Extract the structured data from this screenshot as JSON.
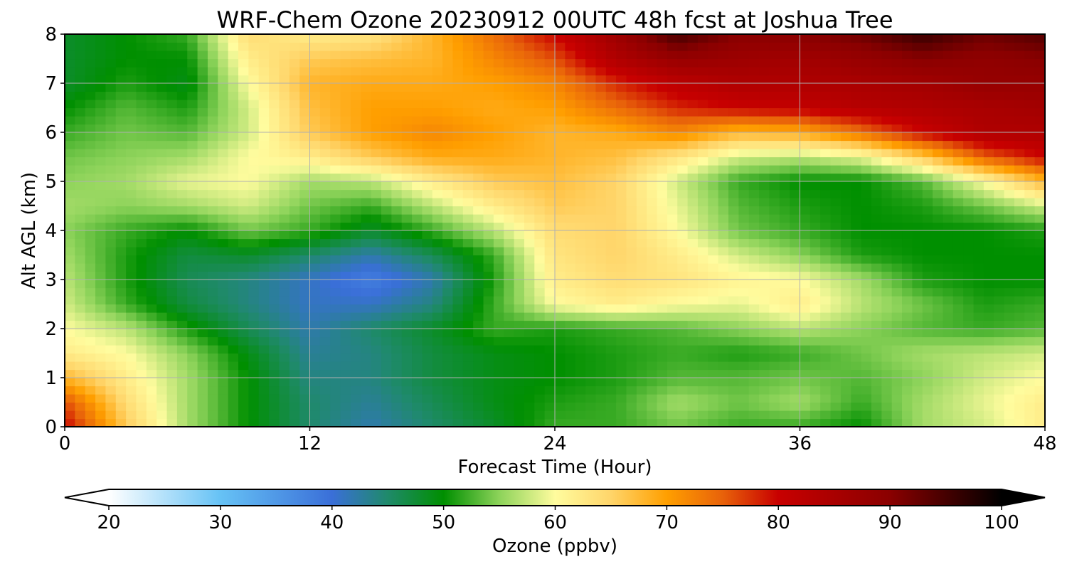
{
  "chart_data": {
    "type": "heatmap",
    "title": "WRF-Chem Ozone  20230912 00UTC 48h fcst at Joshua Tree",
    "xlabel": "Forecast Time (Hour)",
    "ylabel": "Alt AGL (km)",
    "xlim": [
      0,
      48
    ],
    "ylim": [
      0,
      8
    ],
    "x_ticks": [
      0,
      12,
      24,
      36,
      48
    ],
    "y_ticks": [
      0,
      1,
      2,
      3,
      4,
      5,
      6,
      7,
      8
    ],
    "grid": true,
    "x": [
      0,
      3,
      6,
      9,
      12,
      15,
      18,
      21,
      24,
      27,
      30,
      33,
      36,
      39,
      42,
      45,
      48
    ],
    "y": [
      0,
      0.5,
      1,
      1.5,
      2,
      2.5,
      3,
      3.5,
      4,
      4.5,
      5,
      5.5,
      6,
      6.5,
      7,
      7.5,
      8
    ],
    "z": [
      [
        80,
        66,
        56,
        50,
        45,
        42,
        45,
        48,
        52,
        52,
        54,
        52,
        52,
        50,
        56,
        58,
        62
      ],
      [
        76,
        64,
        56,
        50,
        45,
        43,
        46,
        49,
        51,
        52,
        56,
        54,
        56,
        52,
        56,
        59,
        62
      ],
      [
        68,
        62,
        56,
        50,
        44,
        44,
        47,
        49,
        50,
        51,
        53,
        53,
        54,
        53,
        55,
        58,
        60
      ],
      [
        62,
        60,
        55,
        49,
        43,
        44,
        47,
        49,
        50,
        51,
        52,
        51,
        52,
        54,
        56,
        57,
        58
      ],
      [
        60,
        57,
        51,
        46,
        42,
        45,
        48,
        52,
        51,
        52,
        53,
        55,
        57,
        55,
        53,
        52,
        53
      ],
      [
        58,
        52,
        47,
        44,
        41,
        41,
        44,
        52,
        60,
        62,
        60,
        59,
        62,
        57,
        54,
        51,
        52
      ],
      [
        57,
        51,
        46,
        44,
        41,
        38,
        42,
        51,
        62,
        64,
        63,
        61,
        60,
        56,
        51,
        50,
        50
      ],
      [
        56,
        51,
        47,
        48,
        45,
        42,
        46,
        52,
        63,
        65,
        62,
        58,
        55,
        51,
        50,
        50,
        50
      ],
      [
        55,
        52,
        50,
        54,
        52,
        48,
        52,
        57,
        64,
        65,
        60,
        54,
        52,
        50,
        50,
        50,
        51
      ],
      [
        56,
        55,
        56,
        58,
        54,
        52,
        57,
        62,
        66,
        65,
        59,
        53,
        51,
        50,
        51,
        54,
        58
      ],
      [
        55,
        56,
        59,
        60,
        56,
        57,
        62,
        66,
        67,
        65,
        58,
        52,
        50,
        50,
        53,
        60,
        68
      ],
      [
        54,
        55,
        56,
        60,
        62,
        66,
        69,
        69,
        68,
        67,
        63,
        58,
        57,
        59,
        66,
        75,
        80
      ],
      [
        52,
        54,
        53,
        58,
        66,
        70,
        72,
        70,
        68,
        69,
        72,
        68,
        69,
        74,
        80,
        84,
        84
      ],
      [
        50,
        53,
        51,
        58,
        67,
        70,
        70,
        69,
        70,
        74,
        78,
        80,
        81,
        83,
        84,
        85,
        86
      ],
      [
        48,
        51,
        49,
        60,
        68,
        69,
        69,
        70,
        72,
        78,
        82,
        84,
        84,
        85,
        86,
        88,
        88
      ],
      [
        48,
        50,
        50,
        62,
        66,
        67,
        68,
        72,
        76,
        84,
        88,
        87,
        86,
        88,
        90,
        89,
        90
      ],
      [
        48,
        50,
        52,
        64,
        62,
        63,
        68,
        74,
        80,
        87,
        95,
        90,
        90,
        92,
        96,
        92,
        94
      ]
    ],
    "colorbar": {
      "label": "Ozone  (ppbv)",
      "min": 20,
      "max": 100,
      "ticks": [
        20,
        30,
        40,
        50,
        60,
        70,
        80,
        90,
        100
      ],
      "extend": "both",
      "colormap": [
        {
          "value": 20,
          "color": "#ffffff"
        },
        {
          "value": 30,
          "color": "#66c2f5"
        },
        {
          "value": 40,
          "color": "#3a6fd8"
        },
        {
          "value": 45,
          "color": "#1f8a6a"
        },
        {
          "value": 50,
          "color": "#008f00"
        },
        {
          "value": 55,
          "color": "#8dd35a"
        },
        {
          "value": 60,
          "color": "#fffc9e"
        },
        {
          "value": 65,
          "color": "#ffd56a"
        },
        {
          "value": 70,
          "color": "#ff9f00"
        },
        {
          "value": 75,
          "color": "#e8620a"
        },
        {
          "value": 80,
          "color": "#c80000"
        },
        {
          "value": 90,
          "color": "#8a0000"
        },
        {
          "value": 100,
          "color": "#000000"
        }
      ]
    }
  }
}
